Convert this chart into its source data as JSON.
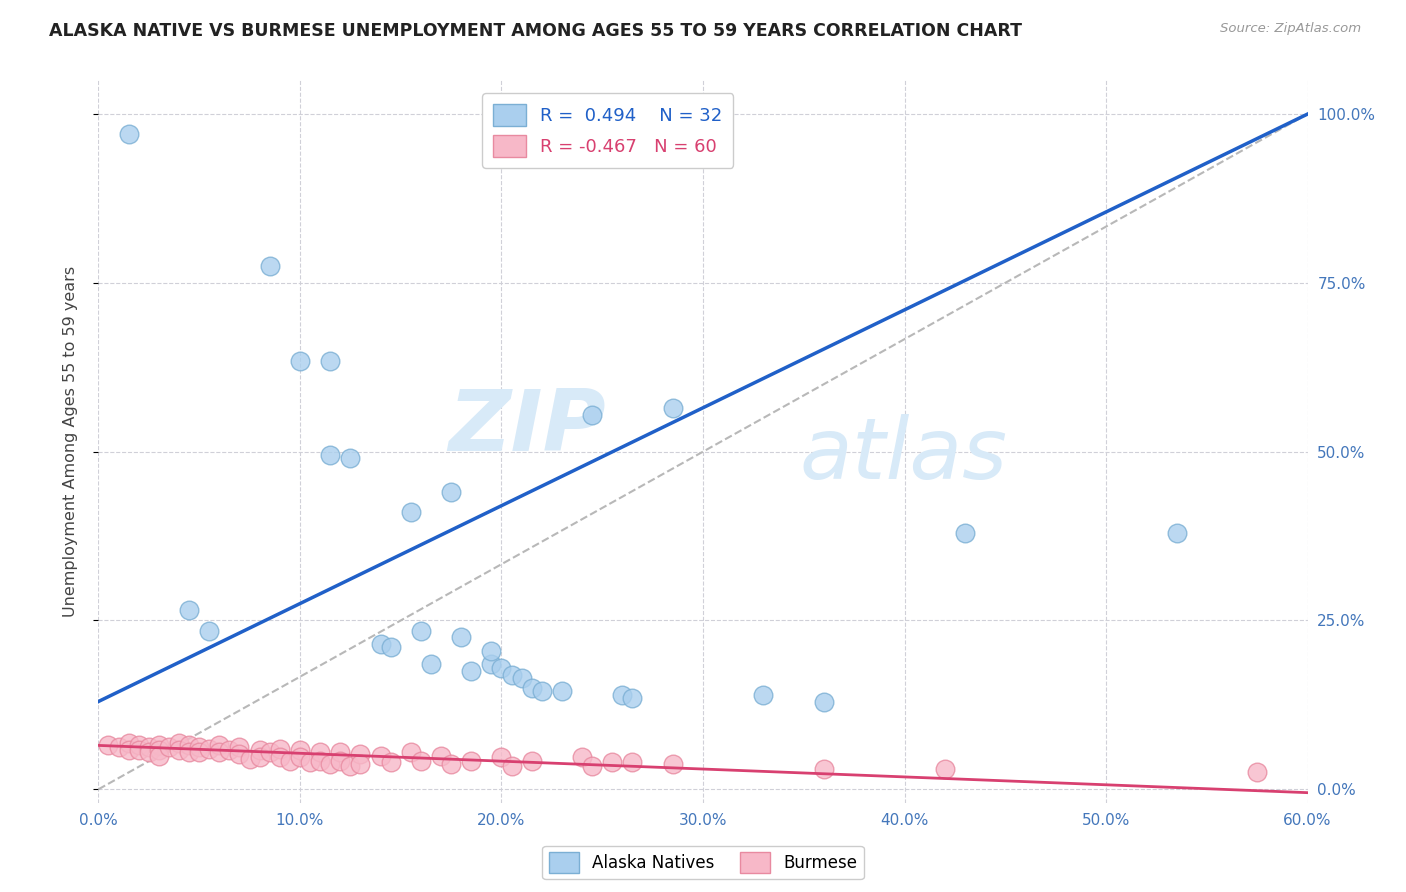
{
  "title": "ALASKA NATIVE VS BURMESE UNEMPLOYMENT AMONG AGES 55 TO 59 YEARS CORRELATION CHART",
  "source": "Source: ZipAtlas.com",
  "ylabel": "Unemployment Among Ages 55 to 59 years",
  "xlim": [
    0.0,
    0.6
  ],
  "ylim": [
    -0.02,
    1.05
  ],
  "xticks": [
    0.0,
    0.1,
    0.2,
    0.3,
    0.4,
    0.5,
    0.6
  ],
  "xticklabels": [
    "0.0%",
    "10.0%",
    "20.0%",
    "30.0%",
    "40.0%",
    "50.0%",
    "60.0%"
  ],
  "yticks": [
    0.0,
    0.25,
    0.5,
    0.75,
    1.0
  ],
  "yticklabels_right": [
    "0.0%",
    "25.0%",
    "50.0%",
    "75.0%",
    "100.0%"
  ],
  "alaska_R": 0.494,
  "alaska_N": 32,
  "burmese_R": -0.467,
  "burmese_N": 60,
  "alaska_color": "#aacfee",
  "alaska_edge": "#7bafd4",
  "burmese_color": "#f7b8c8",
  "burmese_edge": "#e88aa0",
  "alaska_line_color": "#2060c8",
  "burmese_line_color": "#d84070",
  "diagonal_color": "#b8b8b8",
  "background": "#ffffff",
  "watermark_zip": "ZIP",
  "watermark_atlas": "atlas",
  "alaska_line_x0": 0.0,
  "alaska_line_y0": 0.13,
  "alaska_line_x1": 0.6,
  "alaska_line_y1": 1.0,
  "burmese_line_x0": 0.0,
  "burmese_line_y0": 0.065,
  "burmese_line_x1": 0.6,
  "burmese_line_y1": -0.005,
  "alaska_points": [
    [
      0.015,
      0.97
    ],
    [
      0.045,
      0.265
    ],
    [
      0.055,
      0.235
    ],
    [
      0.085,
      0.775
    ],
    [
      0.1,
      0.635
    ],
    [
      0.115,
      0.635
    ],
    [
      0.115,
      0.495
    ],
    [
      0.125,
      0.49
    ],
    [
      0.14,
      0.215
    ],
    [
      0.145,
      0.21
    ],
    [
      0.155,
      0.41
    ],
    [
      0.16,
      0.235
    ],
    [
      0.165,
      0.185
    ],
    [
      0.175,
      0.44
    ],
    [
      0.18,
      0.225
    ],
    [
      0.185,
      0.175
    ],
    [
      0.195,
      0.185
    ],
    [
      0.195,
      0.205
    ],
    [
      0.2,
      0.18
    ],
    [
      0.205,
      0.17
    ],
    [
      0.21,
      0.165
    ],
    [
      0.215,
      0.15
    ],
    [
      0.22,
      0.145
    ],
    [
      0.23,
      0.145
    ],
    [
      0.245,
      0.555
    ],
    [
      0.26,
      0.14
    ],
    [
      0.265,
      0.135
    ],
    [
      0.285,
      0.565
    ],
    [
      0.33,
      0.14
    ],
    [
      0.36,
      0.13
    ],
    [
      0.43,
      0.38
    ],
    [
      0.535,
      0.38
    ]
  ],
  "burmese_points": [
    [
      0.005,
      0.065
    ],
    [
      0.01,
      0.062
    ],
    [
      0.015,
      0.068
    ],
    [
      0.015,
      0.058
    ],
    [
      0.02,
      0.065
    ],
    [
      0.02,
      0.058
    ],
    [
      0.025,
      0.062
    ],
    [
      0.025,
      0.055
    ],
    [
      0.03,
      0.065
    ],
    [
      0.03,
      0.058
    ],
    [
      0.03,
      0.05
    ],
    [
      0.035,
      0.062
    ],
    [
      0.04,
      0.068
    ],
    [
      0.04,
      0.058
    ],
    [
      0.045,
      0.065
    ],
    [
      0.045,
      0.055
    ],
    [
      0.05,
      0.062
    ],
    [
      0.05,
      0.055
    ],
    [
      0.055,
      0.06
    ],
    [
      0.06,
      0.065
    ],
    [
      0.06,
      0.055
    ],
    [
      0.065,
      0.058
    ],
    [
      0.07,
      0.062
    ],
    [
      0.07,
      0.052
    ],
    [
      0.075,
      0.045
    ],
    [
      0.08,
      0.058
    ],
    [
      0.08,
      0.048
    ],
    [
      0.085,
      0.055
    ],
    [
      0.09,
      0.06
    ],
    [
      0.09,
      0.048
    ],
    [
      0.095,
      0.042
    ],
    [
      0.1,
      0.058
    ],
    [
      0.1,
      0.048
    ],
    [
      0.105,
      0.04
    ],
    [
      0.11,
      0.055
    ],
    [
      0.11,
      0.042
    ],
    [
      0.115,
      0.038
    ],
    [
      0.12,
      0.055
    ],
    [
      0.12,
      0.042
    ],
    [
      0.125,
      0.035
    ],
    [
      0.13,
      0.052
    ],
    [
      0.13,
      0.038
    ],
    [
      0.14,
      0.05
    ],
    [
      0.145,
      0.04
    ],
    [
      0.155,
      0.055
    ],
    [
      0.16,
      0.042
    ],
    [
      0.17,
      0.05
    ],
    [
      0.175,
      0.038
    ],
    [
      0.185,
      0.042
    ],
    [
      0.2,
      0.048
    ],
    [
      0.205,
      0.035
    ],
    [
      0.215,
      0.042
    ],
    [
      0.24,
      0.048
    ],
    [
      0.245,
      0.035
    ],
    [
      0.255,
      0.04
    ],
    [
      0.265,
      0.04
    ],
    [
      0.285,
      0.038
    ],
    [
      0.36,
      0.03
    ],
    [
      0.42,
      0.03
    ],
    [
      0.575,
      0.025
    ]
  ]
}
